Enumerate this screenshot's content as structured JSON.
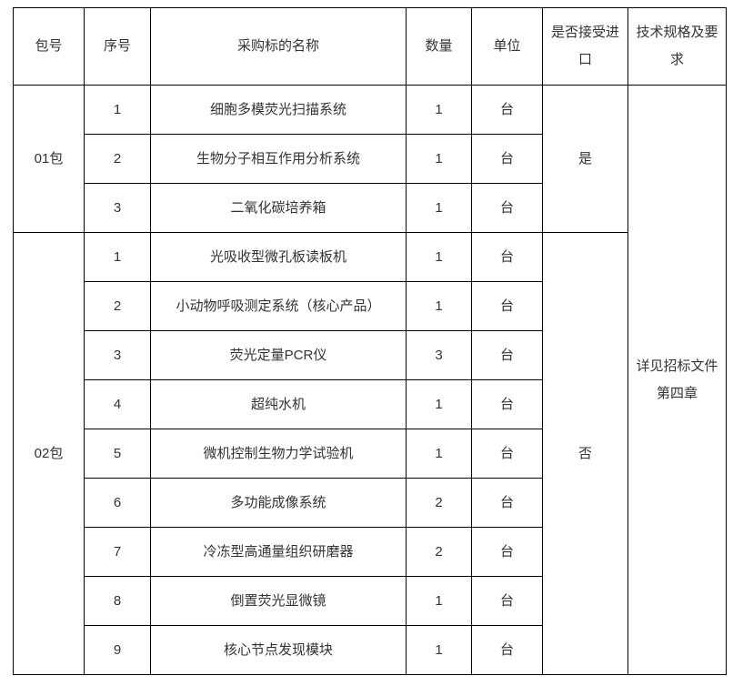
{
  "table": {
    "headers": [
      "包号",
      "序号",
      "采购标的名称",
      "数量",
      "单位",
      "是否接受进口",
      "技术规格及要求"
    ],
    "spec_note": "详见招标文件第四章",
    "packages": [
      {
        "package": "01包",
        "accept_import": "是",
        "items": [
          {
            "no": "1",
            "name": "细胞多模荧光扫描系统",
            "qty": "1",
            "unit": "台"
          },
          {
            "no": "2",
            "name": "生物分子相互作用分析系统",
            "qty": "1",
            "unit": "台"
          },
          {
            "no": "3",
            "name": "二氧化碳培养箱",
            "qty": "1",
            "unit": "台"
          }
        ]
      },
      {
        "package": "02包",
        "accept_import": "否",
        "items": [
          {
            "no": "1",
            "name": "光吸收型微孔板读板机",
            "qty": "1",
            "unit": "台"
          },
          {
            "no": "2",
            "name": "小动物呼吸测定系统（核心产品）",
            "qty": "1",
            "unit": "台"
          },
          {
            "no": "3",
            "name": "荧光定量PCR仪",
            "qty": "3",
            "unit": "台"
          },
          {
            "no": "4",
            "name": "超纯水机",
            "qty": "1",
            "unit": "台"
          },
          {
            "no": "5",
            "name": "微机控制生物力学试验机",
            "qty": "1",
            "unit": "台"
          },
          {
            "no": "6",
            "name": "多功能成像系统",
            "qty": "2",
            "unit": "台"
          },
          {
            "no": "7",
            "name": "冷冻型高通量组织研磨器",
            "qty": "2",
            "unit": "台"
          },
          {
            "no": "8",
            "name": "倒置荧光显微镜",
            "qty": "1",
            "unit": "台"
          },
          {
            "no": "9",
            "name": "核心节点发现模块",
            "qty": "1",
            "unit": "台"
          }
        ]
      }
    ]
  }
}
